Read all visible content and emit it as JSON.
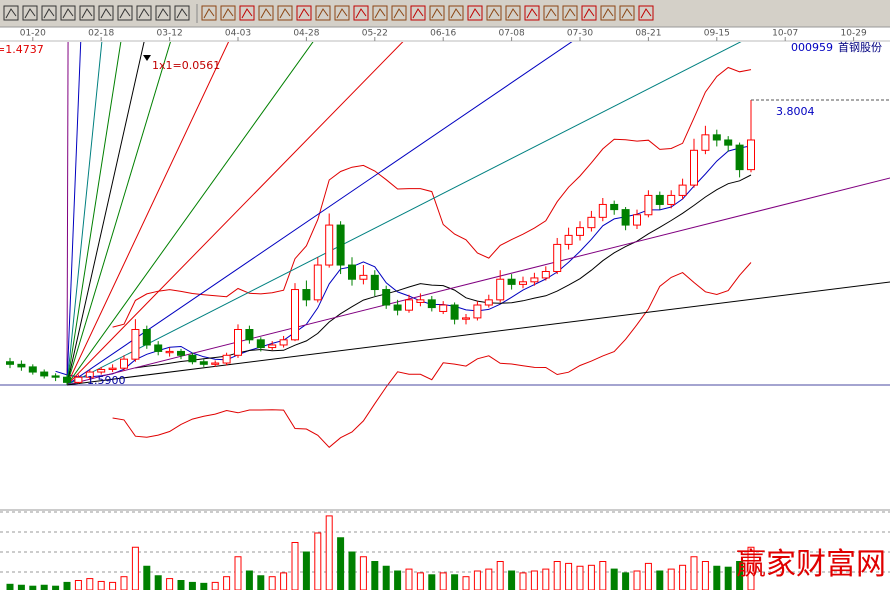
{
  "chart_data": {
    "type": "candlestick",
    "title": "000959",
    "subtitle": "首钢股份",
    "categories": [
      null,
      null,
      "01-20",
      null,
      null,
      null,
      null,
      null,
      "02-18",
      null,
      null,
      null,
      null,
      null,
      "03-12",
      null,
      null,
      null,
      null,
      null,
      "04-03",
      null,
      null,
      null,
      null,
      null,
      "04-28",
      null,
      null,
      null,
      null,
      null,
      "05-22",
      null,
      null,
      null,
      null,
      null,
      "06-16",
      null,
      null,
      null,
      null,
      null,
      "07-08",
      null,
      null,
      null,
      null,
      null,
      "07-30",
      null,
      null,
      null,
      null,
      null,
      "08-21",
      null,
      null,
      null,
      null,
      null,
      "09-15",
      null,
      null,
      null,
      null,
      null,
      "10-07",
      null,
      null,
      null,
      null,
      null,
      "10-29"
    ],
    "open": [
      1.77,
      1.75,
      1.73,
      1.69,
      1.66,
      1.65,
      1.61,
      1.65,
      1.69,
      1.71,
      1.72,
      1.79,
      2.02,
      1.9,
      1.84,
      1.85,
      1.82,
      1.77,
      1.75,
      1.76,
      1.82,
      2.02,
      1.94,
      1.88,
      1.9,
      1.94,
      2.33,
      2.25,
      2.52,
      2.83,
      2.52,
      2.41,
      2.44,
      2.33,
      2.21,
      2.17,
      2.23,
      2.25,
      2.16,
      2.21,
      2.1,
      2.11,
      2.21,
      2.25,
      2.41,
      2.37,
      2.39,
      2.42,
      2.47,
      2.68,
      2.75,
      2.81,
      2.89,
      2.99,
      2.95,
      2.83,
      2.91,
      3.06,
      2.99,
      3.06,
      3.14,
      3.41,
      3.53,
      3.49,
      3.45,
      3.26,
      null,
      null,
      null,
      null,
      null,
      null,
      null,
      null,
      null
    ],
    "high": [
      1.8,
      1.78,
      1.75,
      1.71,
      1.68,
      1.67,
      1.67,
      1.71,
      1.73,
      1.75,
      1.82,
      2.1,
      2.05,
      1.93,
      1.88,
      1.87,
      1.84,
      1.79,
      1.78,
      1.84,
      2.06,
      2.05,
      1.96,
      1.93,
      1.97,
      2.38,
      2.4,
      2.58,
      2.92,
      2.86,
      2.58,
      2.52,
      2.48,
      2.36,
      2.25,
      2.29,
      2.3,
      2.28,
      2.24,
      2.23,
      2.14,
      2.24,
      2.29,
      2.48,
      2.45,
      2.43,
      2.46,
      2.51,
      2.73,
      2.81,
      2.86,
      2.94,
      3.04,
      3.02,
      2.97,
      2.95,
      3.1,
      3.09,
      3.1,
      3.19,
      3.5,
      3.6,
      3.57,
      3.52,
      3.47,
      3.8,
      null,
      null,
      null,
      null,
      null,
      null,
      null,
      null,
      null
    ],
    "low": [
      1.72,
      1.7,
      1.67,
      1.64,
      1.62,
      1.59,
      1.6,
      1.63,
      1.67,
      1.69,
      1.7,
      1.77,
      1.87,
      1.82,
      1.81,
      1.79,
      1.75,
      1.73,
      1.73,
      1.74,
      1.8,
      1.91,
      1.85,
      1.86,
      1.88,
      1.93,
      2.2,
      2.23,
      2.5,
      2.45,
      2.36,
      2.37,
      2.28,
      2.18,
      2.13,
      2.15,
      2.2,
      2.16,
      2.14,
      2.06,
      2.06,
      2.09,
      2.19,
      2.23,
      2.33,
      2.34,
      2.36,
      2.4,
      2.45,
      2.64,
      2.71,
      2.78,
      2.86,
      2.91,
      2.79,
      2.8,
      2.89,
      2.95,
      2.96,
      3.03,
      3.12,
      3.38,
      3.44,
      3.4,
      3.2,
      3.24,
      null,
      null,
      null,
      null,
      null,
      null,
      null,
      null,
      null
    ],
    "close": [
      1.75,
      1.73,
      1.69,
      1.66,
      1.65,
      1.61,
      1.65,
      1.69,
      1.71,
      1.72,
      1.79,
      2.02,
      1.9,
      1.85,
      1.85,
      1.82,
      1.77,
      1.75,
      1.76,
      1.82,
      2.02,
      1.94,
      1.88,
      1.9,
      1.94,
      2.33,
      2.25,
      2.52,
      2.83,
      2.52,
      2.41,
      2.44,
      2.33,
      2.21,
      2.17,
      2.25,
      2.25,
      2.19,
      2.21,
      2.1,
      2.11,
      2.21,
      2.25,
      2.41,
      2.37,
      2.39,
      2.42,
      2.47,
      2.68,
      2.75,
      2.81,
      2.89,
      2.99,
      2.95,
      2.83,
      2.91,
      3.06,
      2.99,
      3.06,
      3.14,
      3.41,
      3.53,
      3.49,
      3.45,
      3.26,
      3.49,
      null,
      null,
      null,
      null,
      null,
      null,
      null,
      null,
      null
    ],
    "volume": [
      6,
      5,
      4,
      5,
      4,
      8,
      10,
      12,
      9,
      8,
      14,
      45,
      25,
      15,
      12,
      10,
      8,
      7,
      8,
      14,
      35,
      20,
      15,
      14,
      18,
      50,
      40,
      60,
      78,
      55,
      40,
      35,
      30,
      25,
      20,
      22,
      18,
      16,
      18,
      16,
      14,
      20,
      22,
      30,
      20,
      18,
      20,
      22,
      30,
      28,
      25,
      26,
      30,
      22,
      18,
      20,
      28,
      20,
      22,
      26,
      35,
      30,
      25,
      24,
      30,
      45,
      null,
      null,
      null,
      null,
      null,
      null,
      null,
      null,
      null
    ],
    "ylim": [
      0.62,
      4.25
    ],
    "volume_lim": [
      0,
      80
    ],
    "up_color": "#ff0000",
    "down_color": "#008000",
    "annotations": [
      "=1.4737",
      "1x1=0.0561",
      "3.8004",
      "1.5900"
    ]
  },
  "watermark": "赢家财富网"
}
